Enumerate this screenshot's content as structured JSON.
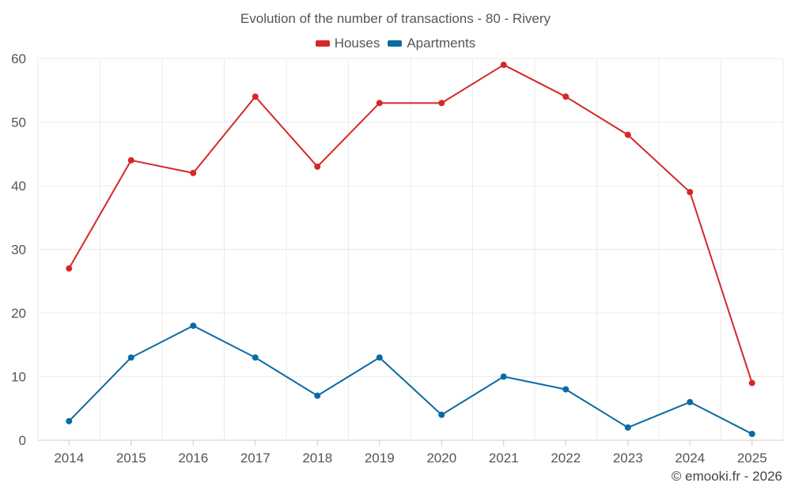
{
  "chart_data": {
    "type": "line",
    "title": "Evolution of the number of transactions - 80 - Rivery",
    "xlabel": "",
    "ylabel": "",
    "categories": [
      "2014",
      "2015",
      "2016",
      "2017",
      "2018",
      "2019",
      "2020",
      "2021",
      "2022",
      "2023",
      "2024",
      "2025"
    ],
    "ylim": [
      0,
      60
    ],
    "yticks": [
      0,
      10,
      20,
      30,
      40,
      50,
      60
    ],
    "grid": true,
    "legend_position": "top-center",
    "series": [
      {
        "name": "Houses",
        "color": "#d62728",
        "values": [
          27,
          44,
          42,
          54,
          43,
          53,
          53,
          59,
          54,
          48,
          39,
          9
        ]
      },
      {
        "name": "Apartments",
        "color": "#0b6aa3",
        "values": [
          3,
          13,
          18,
          13,
          7,
          13,
          4,
          10,
          8,
          2,
          6,
          1
        ]
      }
    ]
  },
  "credit": "© emooki.fr - 2026"
}
